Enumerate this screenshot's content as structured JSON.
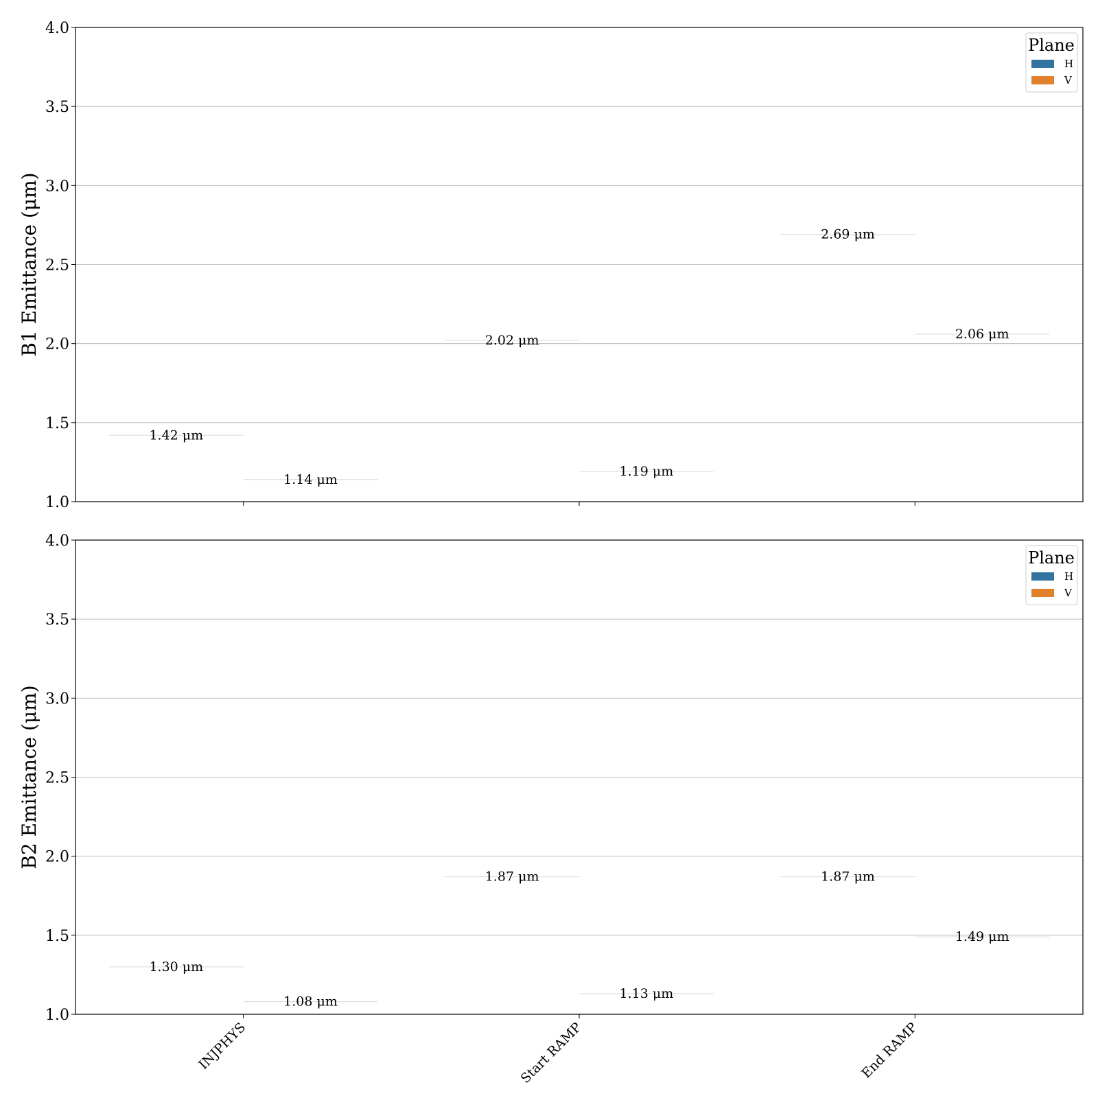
{
  "chart_data": [
    {
      "type": "bar",
      "ylabel": "B1 Emittance (μm)",
      "ylim": [
        1.0,
        4.0
      ],
      "yticks": [
        "1.0",
        "1.5",
        "2.0",
        "2.5",
        "3.0",
        "3.5",
        "4.0"
      ],
      "categories": [
        "INJPHYS",
        "Start RAMP",
        "End RAMP"
      ],
      "grid": true,
      "legend": {
        "title": "Plane",
        "placement": "top-right"
      },
      "series": [
        {
          "name": "H",
          "color": "#3274a1",
          "values": [
            1.42,
            2.02,
            2.69
          ],
          "labels": [
            "1.42 μm",
            "2.02 μm",
            "2.69 μm"
          ]
        },
        {
          "name": "V",
          "color": "#e1812c",
          "values": [
            1.14,
            1.19,
            2.06
          ],
          "labels": [
            "1.14 μm",
            "1.19 μm",
            "2.06 μm"
          ]
        }
      ]
    },
    {
      "type": "bar",
      "ylabel": "B2 Emittance (μm)",
      "ylim": [
        1.0,
        4.0
      ],
      "yticks": [
        "1.0",
        "1.5",
        "2.0",
        "2.5",
        "3.0",
        "3.5",
        "4.0"
      ],
      "categories": [
        "INJPHYS",
        "Start RAMP",
        "End RAMP"
      ],
      "grid": true,
      "legend": {
        "title": "Plane",
        "placement": "top-right"
      },
      "series": [
        {
          "name": "H",
          "color": "#3274a1",
          "values": [
            1.3,
            1.87,
            1.87
          ],
          "labels": [
            "1.30 μm",
            "1.87 μm",
            "1.87 μm"
          ]
        },
        {
          "name": "V",
          "color": "#e1812c",
          "values": [
            1.08,
            1.13,
            1.49
          ],
          "labels": [
            "1.08 μm",
            "1.13 μm",
            "1.49 μm"
          ]
        }
      ]
    }
  ]
}
